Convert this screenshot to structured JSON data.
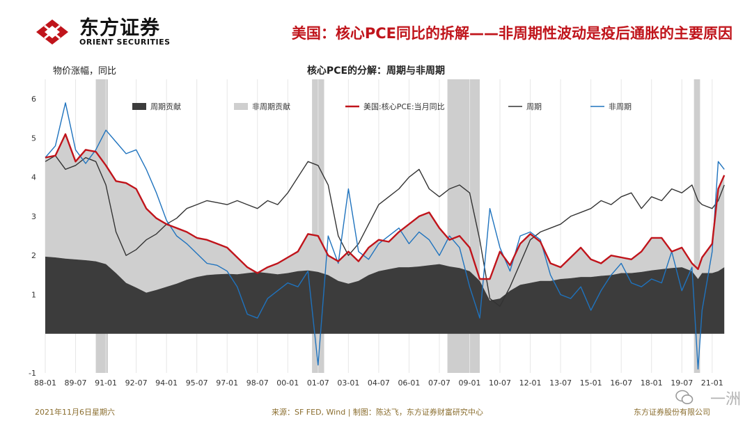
{
  "header": {
    "logo_cn": "东方证券",
    "logo_en": "ORIENT SECURITIES",
    "title": "美国：核心PCE同比的拆解——非周期性波动是疫后通胀的主要原因"
  },
  "footer": {
    "date": "2021年11月6日星期六",
    "source": "来源：SF FED, Wind | 制图：陈达飞，东方证券财富研究中心",
    "company": "东方证券股份有限公司"
  },
  "watermark": {
    "text": "一洲"
  },
  "chart_data": {
    "type": "area",
    "title": "核心PCE的分解：周期与非周期",
    "ylabel": "物价涨幅，同比",
    "ylim": [
      -1,
      6.5
    ],
    "yticks": [
      "-1",
      "1",
      "2",
      "3",
      "4",
      "5",
      "6"
    ],
    "xlim": [
      1988.0,
      2021.8
    ],
    "xticks": [
      "88-01",
      "89-07",
      "91-01",
      "92-07",
      "94-01",
      "95-07",
      "97-01",
      "98-07",
      "00-01",
      "01-07",
      "03-01",
      "04-07",
      "06-01",
      "07-07",
      "09-01",
      "10-07",
      "12-01",
      "13-07",
      "15-01",
      "16-07",
      "18-01",
      "19-07",
      "21-01"
    ],
    "legend_position": "top",
    "legend": [
      "周期贡献",
      "非周期贡献",
      "美国:核心PCE:当月同比",
      "周期",
      "非周期"
    ],
    "recessions": [
      [
        1990.5,
        1991.1
      ],
      [
        2001.2,
        2001.8
      ],
      [
        2007.9,
        2009.5
      ],
      [
        2020.1,
        2020.4
      ]
    ],
    "colors": {
      "cyclical_contribution": "#3c3c3c",
      "acyclical_contribution": "#cfcfcf",
      "core_pce": "#c0141b",
      "cyclical": "#333333",
      "acyclical": "#1f73be",
      "recession": "#bdbdbd"
    },
    "x": [
      1988.0,
      1988.5,
      1989.0,
      1989.5,
      1990.0,
      1990.5,
      1991.0,
      1991.5,
      1992.0,
      1992.5,
      1993.0,
      1993.5,
      1994.0,
      1994.5,
      1995.0,
      1995.5,
      1996.0,
      1996.5,
      1997.0,
      1997.5,
      1998.0,
      1998.5,
      1999.0,
      1999.5,
      2000.0,
      2000.5,
      2001.0,
      2001.5,
      2002.0,
      2002.5,
      2003.0,
      2003.5,
      2004.0,
      2004.5,
      2005.0,
      2005.5,
      2006.0,
      2006.5,
      2007.0,
      2007.5,
      2008.0,
      2008.5,
      2009.0,
      2009.5,
      2010.0,
      2010.5,
      2011.0,
      2011.5,
      2012.0,
      2012.5,
      2013.0,
      2013.5,
      2014.0,
      2014.5,
      2015.0,
      2015.5,
      2016.0,
      2016.5,
      2017.0,
      2017.5,
      2018.0,
      2018.5,
      2019.0,
      2019.5,
      2020.0,
      2020.3,
      2020.5,
      2021.0,
      2021.3,
      2021.6
    ],
    "series": [
      {
        "name": "周期贡献",
        "values": [
          1.97,
          1.95,
          1.92,
          1.9,
          1.88,
          1.85,
          1.78,
          1.55,
          1.3,
          1.18,
          1.05,
          1.12,
          1.2,
          1.28,
          1.38,
          1.45,
          1.5,
          1.52,
          1.53,
          1.52,
          1.55,
          1.58,
          1.55,
          1.52,
          1.55,
          1.6,
          1.62,
          1.58,
          1.5,
          1.35,
          1.28,
          1.35,
          1.5,
          1.6,
          1.65,
          1.7,
          1.7,
          1.72,
          1.75,
          1.78,
          1.72,
          1.68,
          1.6,
          1.35,
          0.85,
          0.9,
          1.1,
          1.25,
          1.3,
          1.35,
          1.35,
          1.4,
          1.42,
          1.45,
          1.45,
          1.48,
          1.5,
          1.55,
          1.55,
          1.58,
          1.62,
          1.65,
          1.68,
          1.7,
          1.6,
          1.4,
          1.55,
          1.55,
          1.6,
          1.7
        ]
      },
      {
        "name": "美国:核心PCE:当月同比",
        "values": [
          4.5,
          4.55,
          5.1,
          4.4,
          4.7,
          4.65,
          4.3,
          3.9,
          3.85,
          3.7,
          3.2,
          2.95,
          2.8,
          2.7,
          2.6,
          2.45,
          2.4,
          2.3,
          2.2,
          1.95,
          1.7,
          1.55,
          1.7,
          1.8,
          1.95,
          2.1,
          2.55,
          2.5,
          2.0,
          1.85,
          2.1,
          1.85,
          2.2,
          2.4,
          2.35,
          2.6,
          2.8,
          3.0,
          3.1,
          2.7,
          2.4,
          2.5,
          2.2,
          1.4,
          1.4,
          2.1,
          1.75,
          2.3,
          2.55,
          2.35,
          1.8,
          1.7,
          1.95,
          2.2,
          1.9,
          1.8,
          2.0,
          1.95,
          1.9,
          2.1,
          2.45,
          2.45,
          2.1,
          2.2,
          1.8,
          1.65,
          1.95,
          2.3,
          3.7,
          4.05
        ]
      },
      {
        "name": "周期",
        "values": [
          4.4,
          4.55,
          4.2,
          4.3,
          4.5,
          4.4,
          3.8,
          2.6,
          2.0,
          2.15,
          2.4,
          2.55,
          2.8,
          2.95,
          3.2,
          3.3,
          3.4,
          3.35,
          3.3,
          3.4,
          3.3,
          3.2,
          3.4,
          3.3,
          3.6,
          4.0,
          4.4,
          4.3,
          3.8,
          2.5,
          2.0,
          2.3,
          2.8,
          3.3,
          3.5,
          3.7,
          4.0,
          4.2,
          3.7,
          3.5,
          3.7,
          3.8,
          3.6,
          2.4,
          0.9,
          0.7,
          1.2,
          1.8,
          2.4,
          2.6,
          2.7,
          2.8,
          3.0,
          3.1,
          3.2,
          3.4,
          3.3,
          3.5,
          3.6,
          3.2,
          3.5,
          3.4,
          3.7,
          3.6,
          3.8,
          3.4,
          3.3,
          3.2,
          3.4,
          3.8
        ]
      },
      {
        "name": "非周期",
        "values": [
          4.5,
          4.8,
          5.9,
          4.7,
          4.35,
          4.7,
          5.2,
          4.9,
          4.6,
          4.7,
          4.2,
          3.6,
          2.9,
          2.5,
          2.3,
          2.05,
          1.8,
          1.75,
          1.6,
          1.2,
          0.5,
          0.4,
          0.9,
          1.1,
          1.3,
          1.2,
          1.6,
          -0.8,
          2.5,
          1.8,
          3.7,
          2.1,
          1.9,
          2.3,
          2.5,
          2.7,
          2.3,
          2.6,
          2.4,
          2.0,
          2.5,
          2.2,
          1.2,
          0.4,
          3.2,
          2.2,
          1.6,
          2.5,
          2.6,
          2.4,
          1.5,
          1.0,
          0.9,
          1.2,
          0.6,
          1.1,
          1.5,
          1.8,
          1.3,
          1.2,
          1.4,
          1.3,
          2.1,
          1.1,
          1.7,
          -0.9,
          0.6,
          2.1,
          4.4,
          4.2
        ]
      }
    ]
  }
}
